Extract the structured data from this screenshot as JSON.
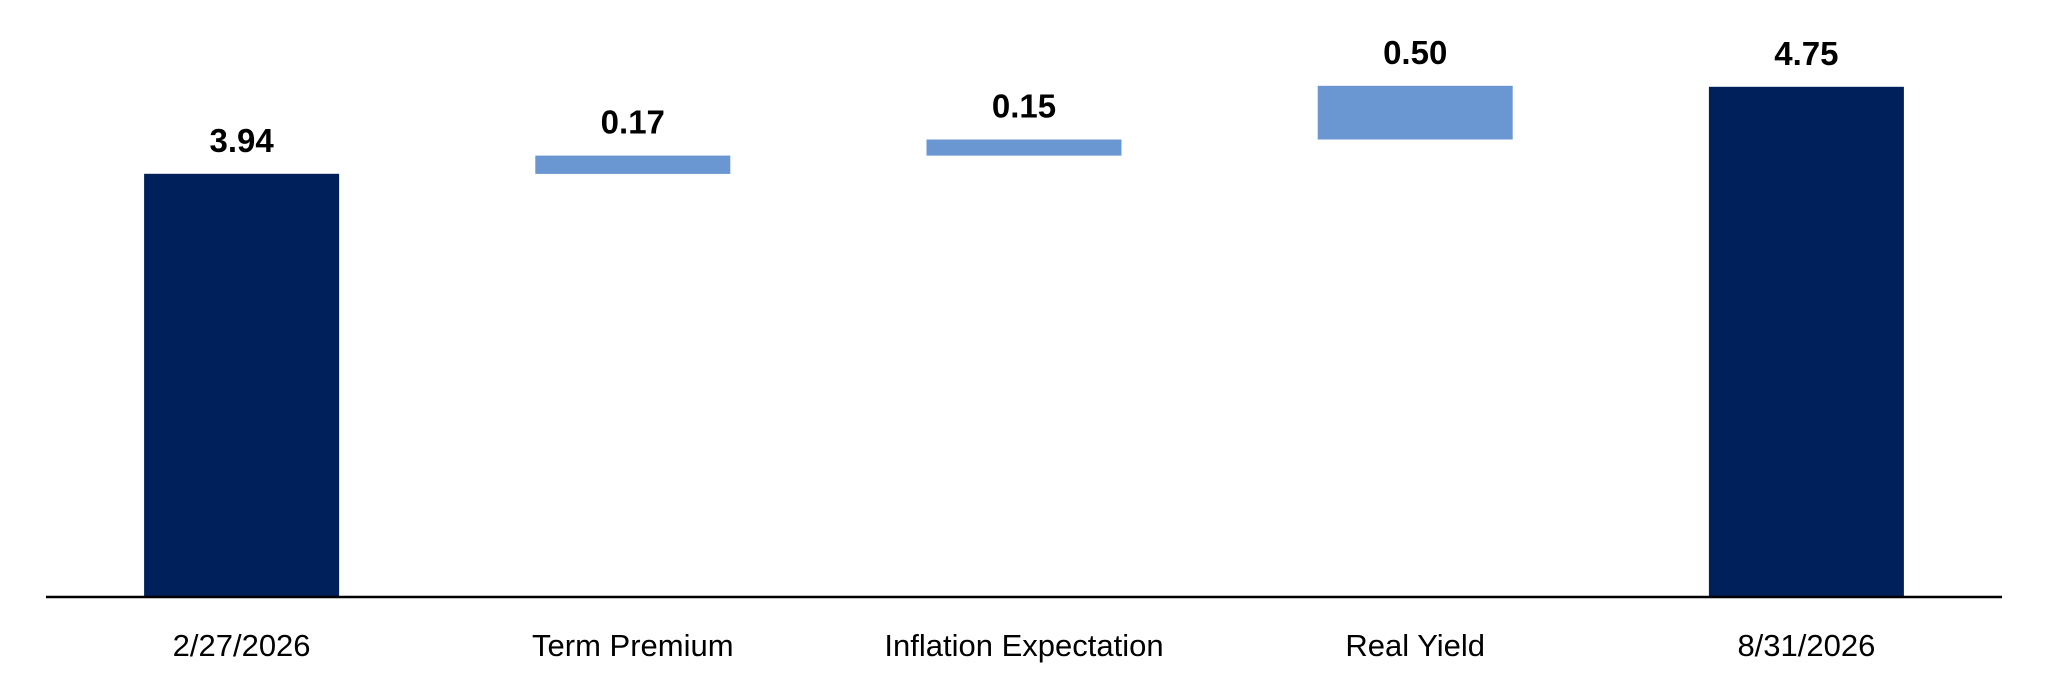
{
  "chart_data": {
    "type": "bar",
    "subtype": "waterfall",
    "categories": [
      "2/27/2026",
      "Term Premium",
      "Inflation Expectation",
      "Real Yield",
      "8/31/2026"
    ],
    "values": [
      3.94,
      0.17,
      0.15,
      0.5,
      4.75
    ],
    "value_labels": [
      "3.94",
      "0.17",
      "0.15",
      "0.50",
      "4.75"
    ],
    "bar_kinds": [
      "total",
      "delta",
      "delta",
      "delta",
      "total"
    ],
    "ylim": [
      0,
      5.1
    ],
    "title": "",
    "xlabel": "",
    "ylabel": "",
    "grid": false,
    "legend": "none",
    "colors": {
      "total": "#00205B",
      "delta": "#6A96D1",
      "axis": "#000000"
    }
  }
}
